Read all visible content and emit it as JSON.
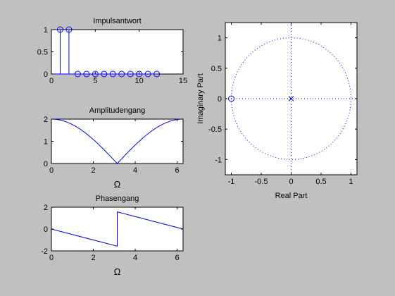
{
  "figure": {
    "background": "#c0c0c0",
    "axes_background": "#ffffff",
    "line_color": "#0000ff"
  },
  "chart_data": [
    {
      "type": "stem",
      "title": "Impulsantwort",
      "xlabel": "",
      "ylabel": "",
      "xlim": [
        0,
        15
      ],
      "ylim": [
        0,
        1
      ],
      "xticks": [
        "0",
        "5",
        "10",
        "15"
      ],
      "yticks": [
        "0",
        "0.5",
        "1"
      ],
      "x": [
        1,
        2,
        3,
        4,
        5,
        6,
        7,
        8,
        9,
        10,
        11,
        12
      ],
      "values": [
        1,
        1,
        0,
        0,
        0,
        0,
        0,
        0,
        0,
        0,
        0,
        0
      ],
      "color": "#0000ff",
      "grid": false
    },
    {
      "type": "line",
      "title": "Amplitudengang",
      "xlabel": "Ω",
      "ylabel": "",
      "xlim": [
        0,
        6.2832
      ],
      "ylim": [
        0,
        2
      ],
      "xticks": [
        "0",
        "2",
        "4",
        "6"
      ],
      "yticks": [
        "0",
        "1",
        "2"
      ],
      "function": "|2cos(x/2)|",
      "color": "#0000ff",
      "grid": false
    },
    {
      "type": "line",
      "title": "Phasengang",
      "xlabel": "Ω",
      "ylabel": "",
      "xlim": [
        0,
        6.2832
      ],
      "ylim": [
        -2,
        2
      ],
      "xticks": [
        "0",
        "2",
        "4",
        "6"
      ],
      "yticks": [
        "-2",
        "0",
        "2"
      ],
      "function": "-x/2 for x < π; π - x/2 for x > π",
      "color": "#0000ff",
      "grid": false
    },
    {
      "type": "scatter",
      "title": "",
      "xlabel": "Real Part",
      "ylabel": "Imaginary Part",
      "xlim": [
        -1.1,
        1.1
      ],
      "ylim": [
        -1.25,
        1.25
      ],
      "xticks": [
        "-1",
        "-0.5",
        "0",
        "0.5",
        "1"
      ],
      "yticks": [
        "-1",
        "-0.5",
        "0",
        "0.5",
        "1"
      ],
      "zeros": [
        {
          "re": -1,
          "im": 0
        }
      ],
      "poles": [
        {
          "re": 0,
          "im": 0
        }
      ],
      "unit_circle": true,
      "color": "#0000ff",
      "grid": false
    }
  ]
}
